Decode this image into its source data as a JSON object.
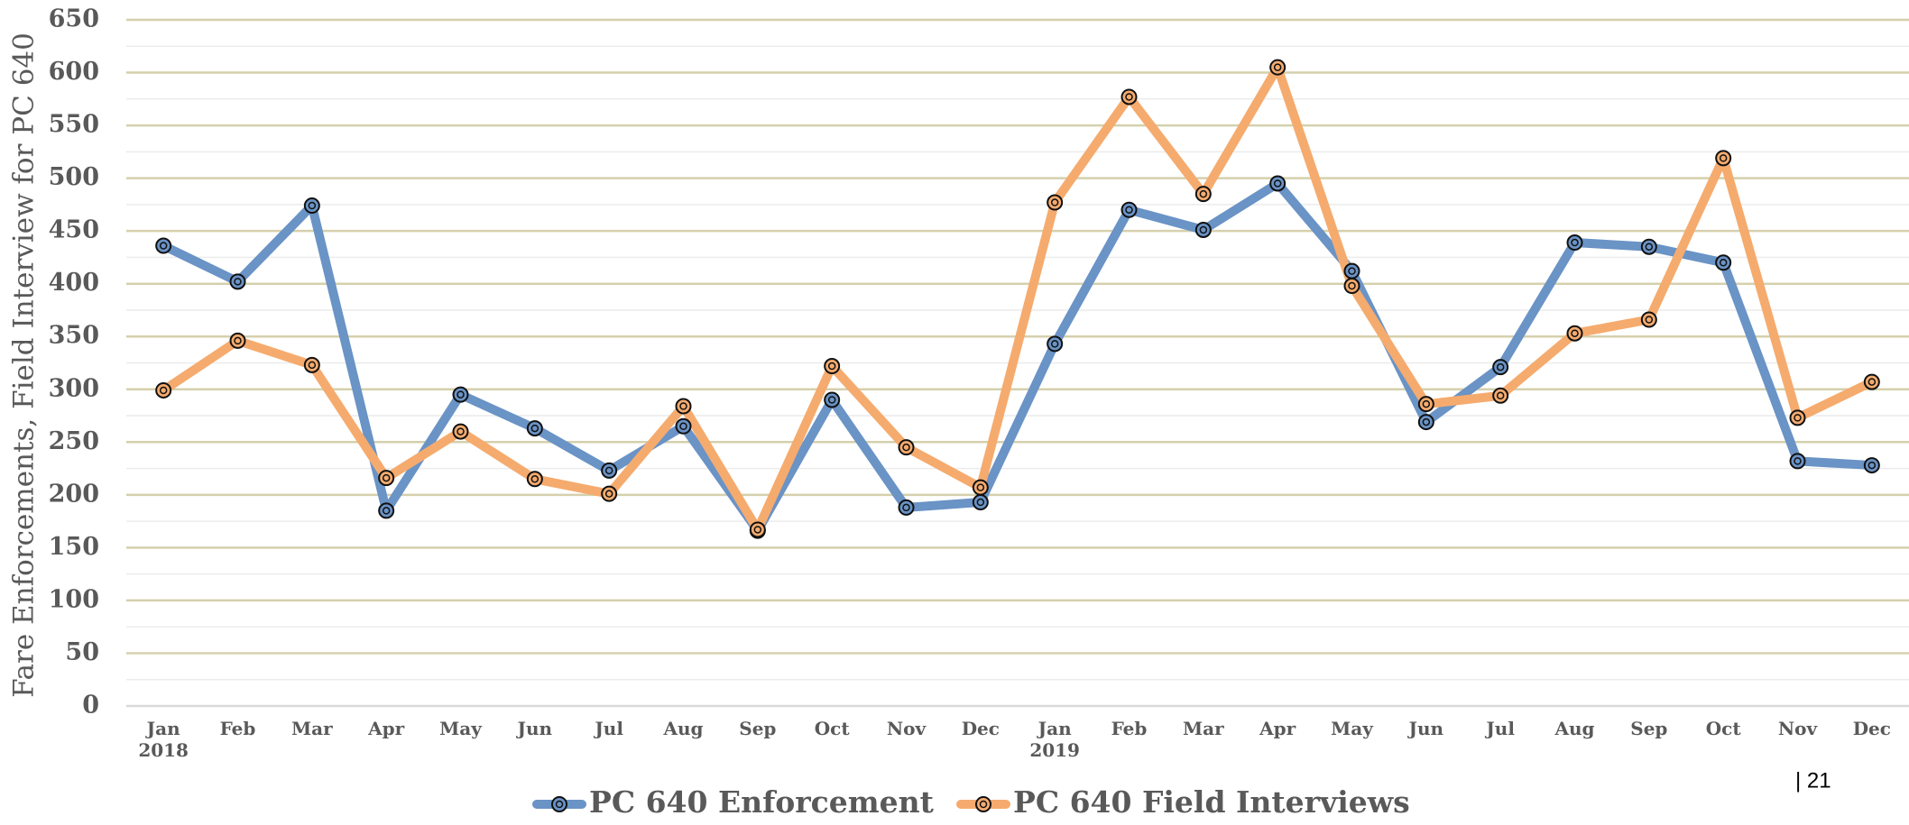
{
  "chart_data": {
    "type": "line",
    "y_axis_label": "Fare Enforcements, Field Interview for PC 640",
    "categories": [
      "Jan 2018",
      "Feb",
      "Mar",
      "Apr",
      "May",
      "Jun",
      "Jul",
      "Aug",
      "Sep",
      "Oct",
      "Nov",
      "Dec",
      "Jan 2019",
      "Feb",
      "Mar",
      "Apr",
      "May",
      "Jun",
      "Jul",
      "Aug",
      "Sep",
      "Oct",
      "Nov",
      "Dec"
    ],
    "series": [
      {
        "name": "PC 640 Enforcement",
        "color": "#6a93c6",
        "values": [
          436,
          402,
          474,
          185,
          295,
          263,
          223,
          265,
          166,
          290,
          188,
          193,
          343,
          470,
          451,
          495,
          412,
          269,
          321,
          439,
          435,
          420,
          232,
          228
        ]
      },
      {
        "name": "PC 640 Field Interviews",
        "color": "#f5ab6e",
        "values": [
          299,
          346,
          323,
          216,
          260,
          215,
          201,
          284,
          167,
          322,
          245,
          207,
          477,
          577,
          485,
          605,
          398,
          286,
          294,
          353,
          366,
          519,
          273,
          307
        ]
      }
    ],
    "ylim": [
      0,
      650
    ],
    "yticks": [
      0,
      50,
      100,
      150,
      200,
      250,
      300,
      350,
      400,
      450,
      500,
      550,
      600,
      650
    ],
    "grid": true,
    "legend": "bottom",
    "page_number": "| 21"
  }
}
